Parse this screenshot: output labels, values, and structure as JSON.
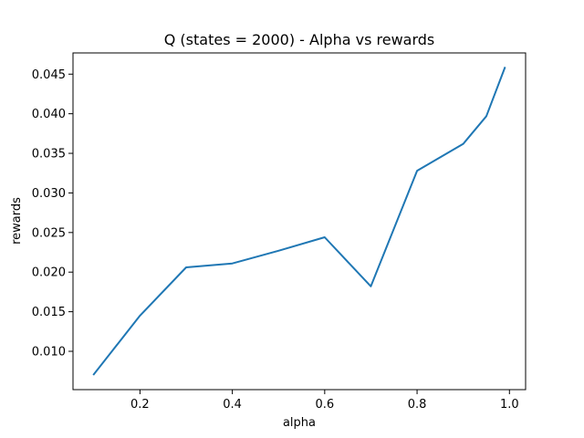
{
  "chart_data": {
    "type": "line",
    "title": "Q (states = 2000) - Alpha vs rewards",
    "xlabel": "alpha",
    "ylabel": "rewards",
    "xlim": [
      0.055,
      1.035
    ],
    "ylim": [
      0.00516,
      0.04768
    ],
    "x_ticks": [
      0.2,
      0.4,
      0.6,
      0.8,
      1.0
    ],
    "x_tick_labels": [
      "0.2",
      "0.4",
      "0.6",
      "0.8",
      "1.0"
    ],
    "y_ticks": [
      0.01,
      0.015,
      0.02,
      0.025,
      0.03,
      0.035,
      0.04,
      0.045
    ],
    "y_tick_labels": [
      "0.010",
      "0.015",
      "0.020",
      "0.025",
      "0.030",
      "0.035",
      "0.040",
      "0.045"
    ],
    "grid": false,
    "series": [
      {
        "color": "#1f77b4",
        "x": [
          0.1,
          0.2,
          0.3,
          0.4,
          0.5,
          0.6,
          0.7,
          0.8,
          0.9,
          0.95,
          0.99
        ],
        "y": [
          0.0071,
          0.0145,
          0.0206,
          0.0211,
          0.0227,
          0.0244,
          0.0182,
          0.0328,
          0.0362,
          0.0397,
          0.0458
        ]
      }
    ]
  }
}
